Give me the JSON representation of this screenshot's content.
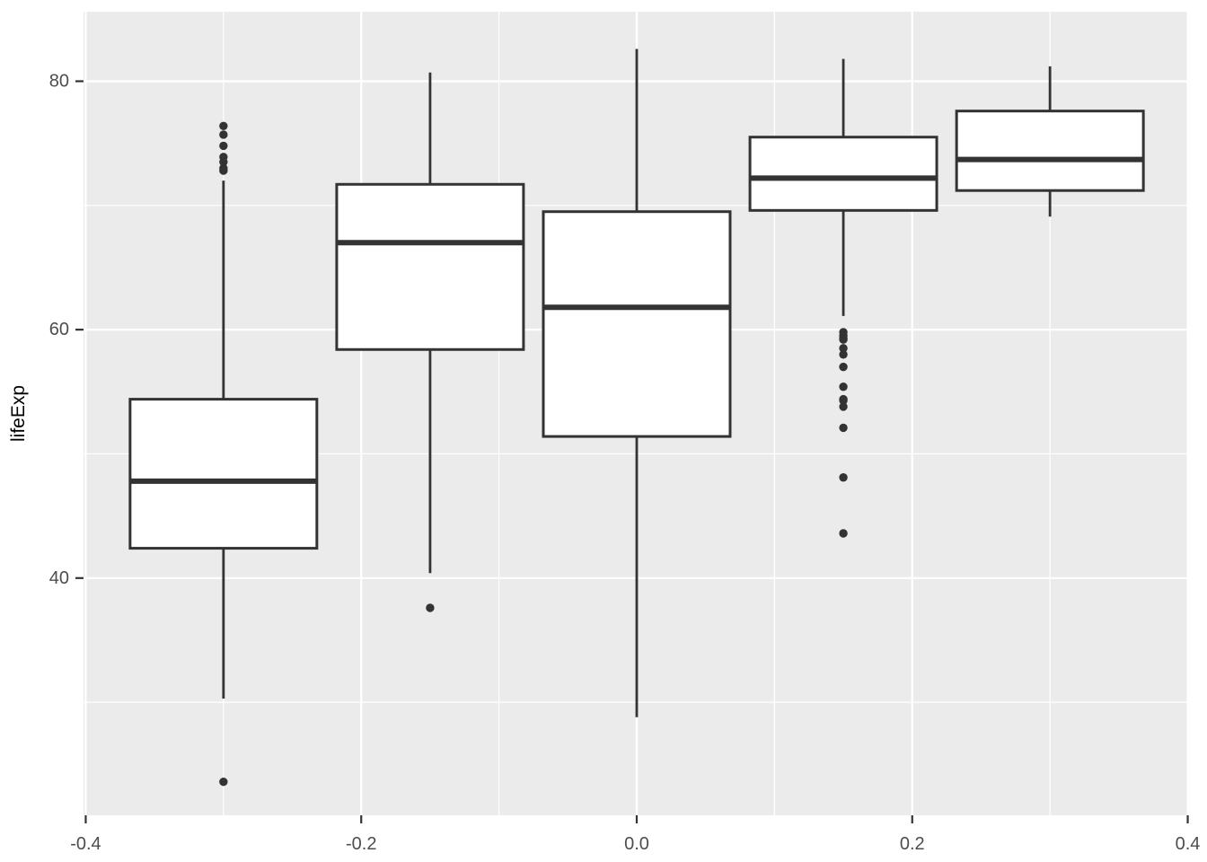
{
  "figure": {
    "ylabel": "lifeExp"
  },
  "style": {
    "plot_bg": "#FFFFFF",
    "panel_bg": "#EBEBEB",
    "grid_color": "#FFFFFF",
    "box_stroke": "#333333",
    "box_fill": "#FFFFFF",
    "outlier_color": "#333333",
    "tick_color": "#333333",
    "axis_text_color": "#4D4D4D",
    "axis_title_color": "#000000"
  },
  "chart_data": {
    "type": "boxplot",
    "title": "",
    "xlabel": "",
    "ylabel": "lifeExp",
    "grid": true,
    "legend": "none",
    "xlim": [
      -0.4016,
      0.4003
    ],
    "ylim": [
      20.9,
      85.6
    ],
    "x_ticks": {
      "values": [
        -0.4,
        -0.2,
        0.0,
        0.2,
        0.4
      ],
      "labels": [
        "-0.4",
        "-0.2",
        "0.0",
        "0.2",
        "0.4"
      ]
    },
    "x_minor": [
      -0.3,
      -0.1,
      0.1,
      0.3
    ],
    "y_ticks": {
      "values": [
        80,
        60,
        40
      ],
      "labels": [
        "80",
        "60",
        "40"
      ]
    },
    "y_minor": [
      70,
      50,
      30
    ],
    "box_width": 0.1356,
    "series": [
      {
        "x": -0.3,
        "lower_whisker": 30.3,
        "q1": 42.4,
        "median": 47.8,
        "q3": 54.4,
        "upper_whisker": 72.0,
        "outliers": [
          76.4,
          75.7,
          74.8,
          73.9,
          73.5,
          73.0,
          72.8,
          23.6
        ]
      },
      {
        "x": -0.15,
        "lower_whisker": 40.4,
        "q1": 58.4,
        "median": 67.0,
        "q3": 71.7,
        "upper_whisker": 80.7,
        "outliers": [
          37.6
        ]
      },
      {
        "x": 0.0,
        "lower_whisker": 28.8,
        "q1": 51.4,
        "median": 61.8,
        "q3": 69.5,
        "upper_whisker": 82.6,
        "outliers": []
      },
      {
        "x": 0.15,
        "lower_whisker": 61.1,
        "q1": 69.6,
        "median": 72.2,
        "q3": 75.5,
        "upper_whisker": 81.8,
        "outliers": [
          59.8,
          59.5,
          59.3,
          59.2,
          58.5,
          58.0,
          57.0,
          55.4,
          54.4,
          54.3,
          53.8,
          52.1,
          48.1,
          43.6
        ]
      },
      {
        "x": 0.3,
        "lower_whisker": 69.1,
        "q1": 71.2,
        "median": 73.7,
        "q3": 77.6,
        "upper_whisker": 81.2,
        "outliers": []
      }
    ]
  }
}
